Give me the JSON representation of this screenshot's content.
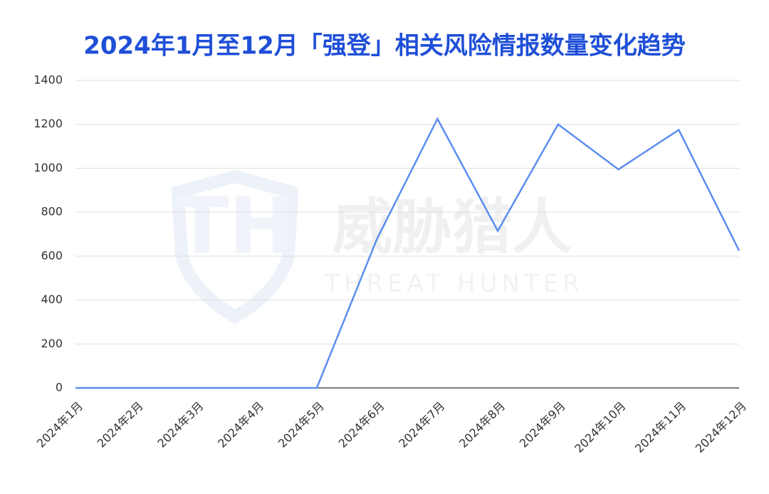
{
  "chart_data": {
    "type": "line",
    "title": "2024年1月至12月「强登」相关风险情报数量变化趋势",
    "watermark": "威胁猎人",
    "watermark_subtitle": "THREAT HUNTER",
    "categories": [
      "2024年1月",
      "2024年2月",
      "2024年3月",
      "2024年4月",
      "2024年5月",
      "2024年6月",
      "2024年7月",
      "2024年8月",
      "2024年9月",
      "2024年10月",
      "2024年11月",
      "2024年12月"
    ],
    "values": [
      0,
      0,
      0,
      0,
      0,
      680,
      1225,
      715,
      1200,
      995,
      1175,
      625
    ],
    "color": "#5b8ef0",
    "ylim": [
      0,
      1400
    ],
    "yticks": [
      0,
      200,
      400,
      600,
      800,
      1000,
      1200,
      1400
    ],
    "grid": true
  }
}
